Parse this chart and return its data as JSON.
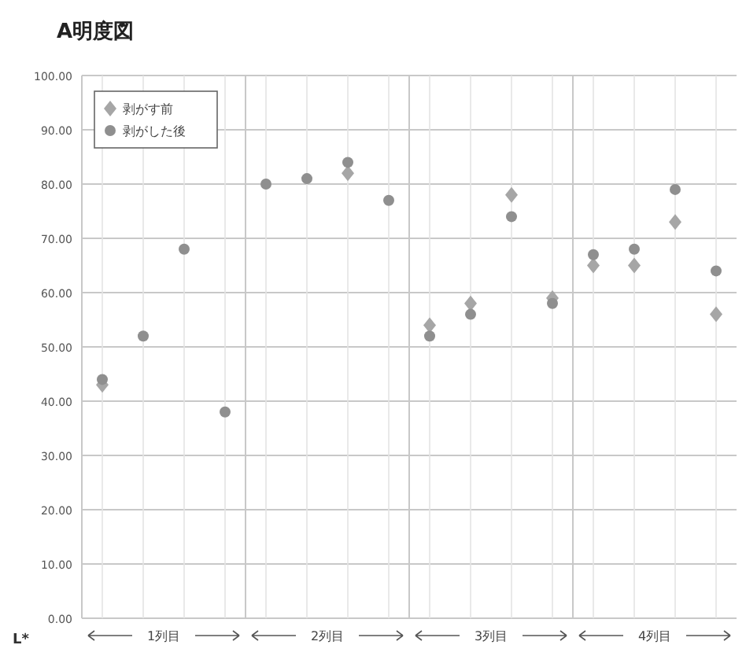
{
  "chart_data": {
    "type": "scatter",
    "title": "A明度図",
    "ylabel": "L*",
    "categories": [
      null,
      null,
      null,
      null,
      null,
      null,
      null,
      null,
      null,
      null,
      null,
      null,
      null,
      null,
      null,
      null
    ],
    "series": [
      {
        "name": "剥がす前",
        "color": "#a6a6a6",
        "marker": "diamond",
        "values": [
          43,
          null,
          null,
          null,
          null,
          null,
          82,
          null,
          54,
          58,
          78,
          59,
          65,
          65,
          73,
          56
        ]
      },
      {
        "name": "剥がした後",
        "color": "#8f8f8f",
        "marker": "circle",
        "values": [
          44,
          52,
          68,
          38,
          80,
          81,
          84,
          77,
          52,
          56,
          74,
          58,
          67,
          68,
          79,
          64
        ]
      }
    ],
    "ylim": [
      0,
      100
    ],
    "yticks": [
      {
        "value": 0,
        "label": "0.00"
      },
      {
        "value": 10,
        "label": "10.00"
      },
      {
        "value": 20,
        "label": "20.00"
      },
      {
        "value": 30,
        "label": "30.00"
      },
      {
        "value": 40,
        "label": "40.00"
      },
      {
        "value": 50,
        "label": "50.00"
      },
      {
        "value": 60,
        "label": "60.00"
      },
      {
        "value": 70,
        "label": "70.00"
      },
      {
        "value": 80,
        "label": "80.00"
      },
      {
        "value": 90,
        "label": "90.00"
      },
      {
        "value": 100,
        "label": "100.00"
      }
    ],
    "grid": true,
    "legend": "top left",
    "annotations": [
      "1列目",
      "2列目",
      "3列目",
      "4列目"
    ]
  }
}
